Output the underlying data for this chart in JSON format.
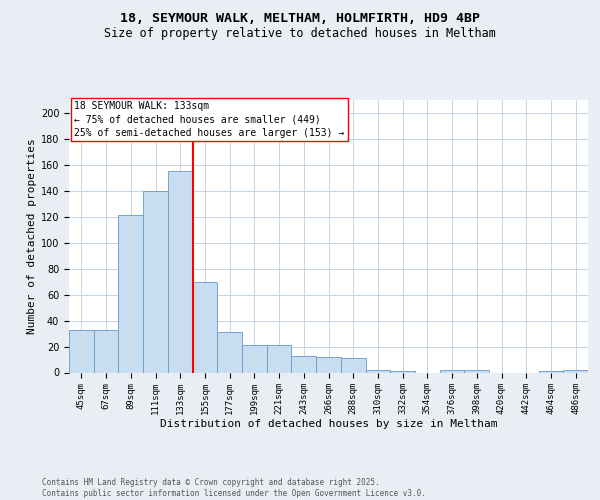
{
  "title_line1": "18, SEYMOUR WALK, MELTHAM, HOLMFIRTH, HD9 4BP",
  "title_line2": "Size of property relative to detached houses in Meltham",
  "xlabel": "Distribution of detached houses by size in Meltham",
  "ylabel": "Number of detached properties",
  "categories": [
    "45sqm",
    "67sqm",
    "89sqm",
    "111sqm",
    "133sqm",
    "155sqm",
    "177sqm",
    "199sqm",
    "221sqm",
    "243sqm",
    "266sqm",
    "288sqm",
    "310sqm",
    "332sqm",
    "354sqm",
    "376sqm",
    "398sqm",
    "420sqm",
    "442sqm",
    "464sqm",
    "486sqm"
  ],
  "values": [
    33,
    33,
    121,
    140,
    155,
    70,
    31,
    21,
    21,
    13,
    12,
    11,
    2,
    1,
    0,
    2,
    2,
    0,
    0,
    1,
    2
  ],
  "bar_color": "#c8ddf0",
  "bar_edge_color": "#6699cc",
  "vline_color": "red",
  "vline_x_index": 4,
  "annotation_text_line1": "18 SEYMOUR WALK: 133sqm",
  "annotation_text_line2": "← 75% of detached houses are smaller (449)",
  "annotation_text_line3": "25% of semi-detached houses are larger (153) →",
  "annotation_box_facecolor": "white",
  "annotation_box_edgecolor": "red",
  "ylim": [
    0,
    210
  ],
  "yticks": [
    0,
    20,
    40,
    60,
    80,
    100,
    120,
    140,
    160,
    180,
    200
  ],
  "background_color": "#e8eef4",
  "plot_background_color": "white",
  "grid_color": "#c5d5e5",
  "footnote": "Contains HM Land Registry data © Crown copyright and database right 2025.\nContains public sector information licensed under the Open Government Licence v3.0.",
  "title_fontsize": 9.5,
  "subtitle_fontsize": 8.5,
  "axis_label_fontsize": 8,
  "tick_fontsize": 6.5,
  "annotation_fontsize": 7,
  "footnote_fontsize": 5.5
}
